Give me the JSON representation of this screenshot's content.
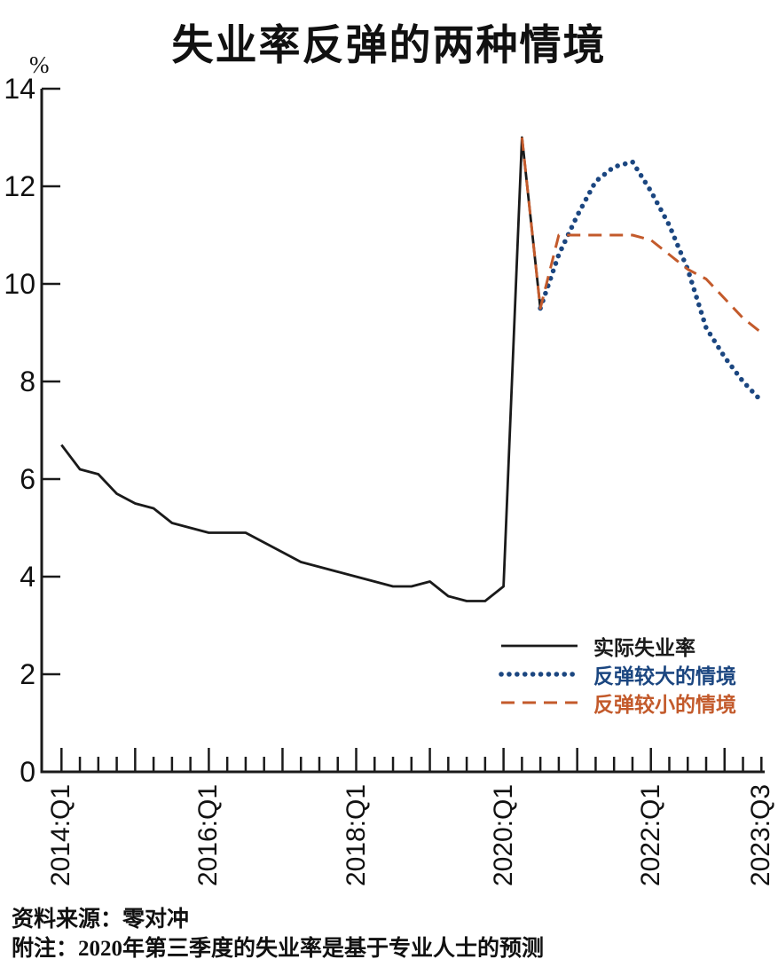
{
  "title": "失业率反弹的两种情境",
  "y_axis": {
    "unit": "%",
    "ticks": [
      0,
      2,
      4,
      6,
      8,
      10,
      12,
      14
    ]
  },
  "x_axis": {
    "total_quarters": 39,
    "tick_labels": [
      {
        "label": "2014:Q1",
        "quarter_index": 0
      },
      {
        "label": "2016:Q1",
        "quarter_index": 8
      },
      {
        "label": "2018:Q1",
        "quarter_index": 16
      },
      {
        "label": "2020:Q1",
        "quarter_index": 24
      },
      {
        "label": "2022:Q1",
        "quarter_index": 32
      },
      {
        "label": "2023:Q3",
        "quarter_index": 38
      }
    ]
  },
  "legend": {
    "items": [
      {
        "label": "实际失业率",
        "series": "actual"
      },
      {
        "label": "反弹较大的情境",
        "series": "large_rebound"
      },
      {
        "label": "反弹较小的情境",
        "series": "small_rebound"
      }
    ]
  },
  "source_line": "资料来源：零对冲",
  "note_line": "附注：2020年第三季度的失业率是基于专业人士的预测",
  "chart_data": {
    "type": "line",
    "title": "失业率反弹的两种情境",
    "ylabel": "%",
    "ylim": [
      0,
      14
    ],
    "ytick_step": 2,
    "x_domain": [
      "2014:Q1",
      "2023:Q3"
    ],
    "x_frequency": "quarterly",
    "grid": false,
    "legend_position": "inside lower right",
    "series": [
      {
        "key": "actual",
        "name": "实际失业率",
        "style": "solid",
        "color": "#1a1a1a",
        "start": "2014:Q1",
        "start_index": 0,
        "values": [
          6.7,
          6.2,
          6.1,
          5.7,
          5.5,
          5.4,
          5.1,
          5.0,
          4.9,
          4.9,
          4.9,
          4.7,
          4.5,
          4.3,
          4.2,
          4.1,
          4.0,
          3.9,
          3.8,
          3.8,
          3.9,
          3.6,
          3.5,
          3.5,
          3.8,
          13.0,
          9.5
        ]
      },
      {
        "key": "large_rebound",
        "name": "反弹较大的情境",
        "style": "dotted",
        "color": "#1b4680",
        "start": "2020:Q3",
        "start_index": 26,
        "values": [
          9.5,
          10.6,
          11.4,
          12.1,
          12.4,
          12.5,
          11.9,
          11.2,
          10.3,
          9.1,
          8.5,
          8.0,
          7.6
        ]
      },
      {
        "key": "small_rebound",
        "name": "反弹较小的情境",
        "style": "dashed",
        "color": "#c35a2b",
        "start": "2020:Q2",
        "start_index": 25,
        "values": [
          13.0,
          9.5,
          11.0,
          11.0,
          11.0,
          11.0,
          11.0,
          10.9,
          10.6,
          10.3,
          10.1,
          9.7,
          9.3,
          9.0
        ]
      }
    ]
  }
}
